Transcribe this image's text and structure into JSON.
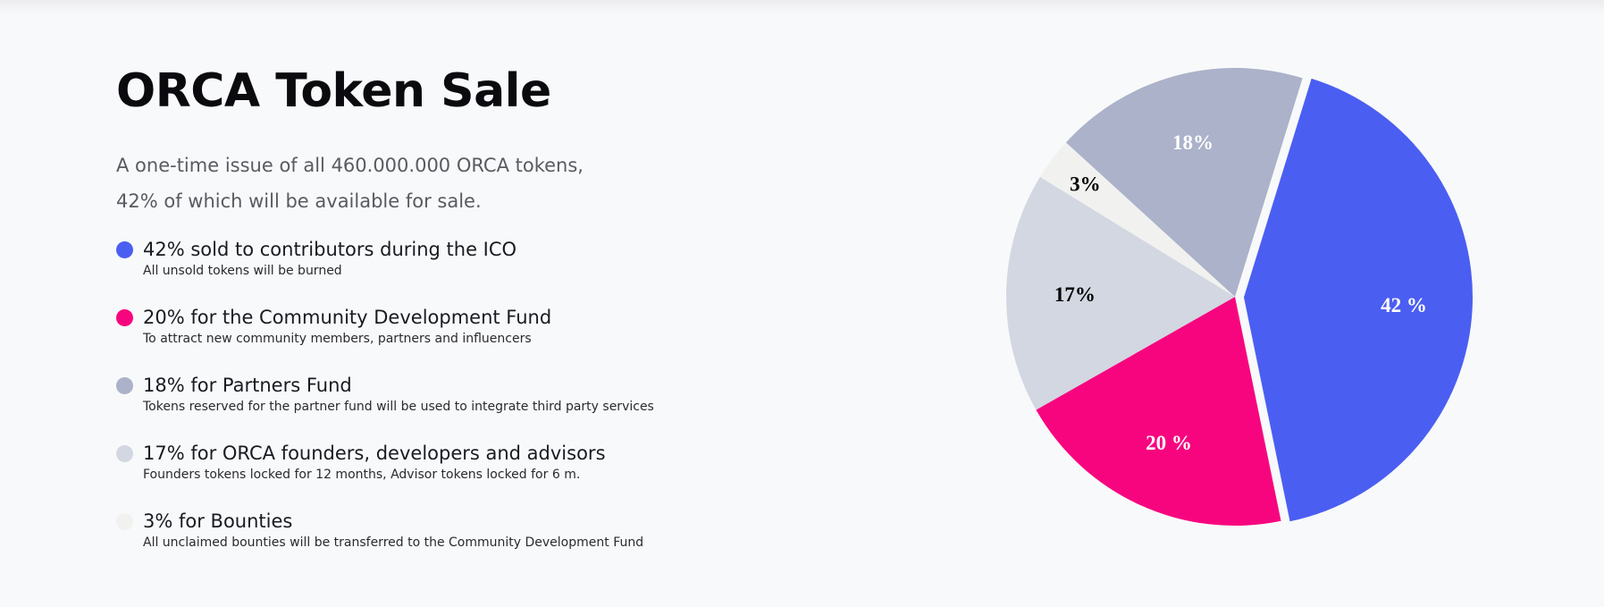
{
  "page": {
    "title": "ORCA Token Sale",
    "intro_line1": "A one-time issue of all 460.000.000 ORCA tokens,",
    "intro_line2": "42% of which will be available for sale."
  },
  "legend": [
    {
      "title": "42% sold to contributors during the ICO",
      "subtitle": "All unsold tokens will be burned",
      "color": "#4b5ef2"
    },
    {
      "title": "20% for the Community Development Fund",
      "subtitle": "To attract new community members, partners and influencers",
      "color": "#f7057f"
    },
    {
      "title": "18% for Partners Fund",
      "subtitle": "Tokens reserved for the partner fund will be used to integrate third party services",
      "color": "#abb2c9"
    },
    {
      "title": "17% for ORCA founders, developers and advisors",
      "subtitle": "Founders tokens locked for 12 months, Advisor tokens locked for 6 m.",
      "color": "#d3d7e1"
    },
    {
      "title": "3% for Bounties",
      "subtitle": "All unclaimed bounties will be transferred to the Community Development Fund",
      "color": "#f1f2f0"
    }
  ],
  "chart_data": {
    "type": "pie",
    "slices": [
      {
        "value": 42,
        "label": "42 %",
        "color": "#4b5ef2",
        "label_color": "#ffffff"
      },
      {
        "value": 20,
        "label": "20 %",
        "color": "#f7057f",
        "label_color": "#ffffff"
      },
      {
        "value": 17,
        "label": "17%",
        "color": "#d3d7e1",
        "label_color": "#000000"
      },
      {
        "value": 3,
        "label": "3%",
        "color": "#f1f2f0",
        "label_color": "#000000"
      },
      {
        "value": 18,
        "label": "18%",
        "color": "#abb2c9",
        "label_color": "#ffffff"
      }
    ]
  }
}
